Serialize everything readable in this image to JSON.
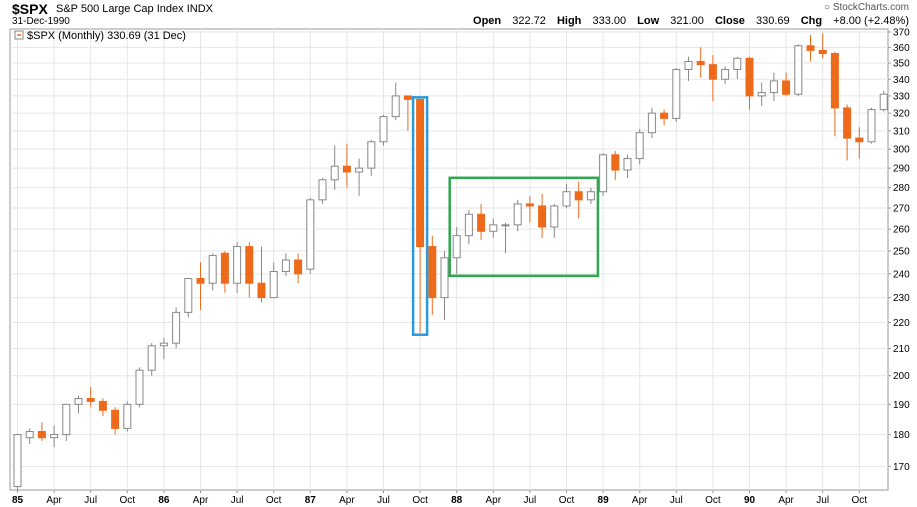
{
  "header": {
    "symbol": "$SPX",
    "name": "S&P 500 Large Cap Index",
    "exchange": "INDX",
    "date": "31-Dec-1990",
    "brand": "StockCharts.com",
    "open_label": "Open",
    "open": "322.72",
    "high_label": "High",
    "high": "333.00",
    "low_label": "Low",
    "low": "321.00",
    "close_label": "Close",
    "close": "330.69",
    "chg_label": "Chg",
    "chg": "+8.00 (+2.48%)"
  },
  "legend": {
    "text": "$SPX (Monthly) 330.69 (31 Dec)"
  },
  "colors": {
    "up_fill": "#ffffff",
    "up_stroke": "#888888",
    "down": "#ee6a1b",
    "grid": "#e6e6e6",
    "highlight_blue": "#2b9ad6",
    "highlight_green": "#2fa84f"
  },
  "chart_data": {
    "type": "candlestick",
    "scale": "log",
    "ylim": [
      163,
      372
    ],
    "y_ticks": [
      170,
      180,
      190,
      200,
      210,
      220,
      230,
      240,
      250,
      260,
      270,
      280,
      290,
      300,
      310,
      320,
      330,
      340,
      350,
      360,
      370
    ],
    "x_ticks": [
      {
        "label": "85",
        "index": 0,
        "year": true
      },
      {
        "label": "Apr",
        "index": 3
      },
      {
        "label": "Jul",
        "index": 6
      },
      {
        "label": "Oct",
        "index": 9
      },
      {
        "label": "86",
        "index": 12,
        "year": true
      },
      {
        "label": "Apr",
        "index": 15
      },
      {
        "label": "Jul",
        "index": 18
      },
      {
        "label": "Oct",
        "index": 21
      },
      {
        "label": "87",
        "index": 24,
        "year": true
      },
      {
        "label": "Apr",
        "index": 27
      },
      {
        "label": "Jul",
        "index": 30
      },
      {
        "label": "Oct",
        "index": 33
      },
      {
        "label": "88",
        "index": 36,
        "year": true
      },
      {
        "label": "Apr",
        "index": 39
      },
      {
        "label": "Jul",
        "index": 42
      },
      {
        "label": "Oct",
        "index": 45
      },
      {
        "label": "89",
        "index": 48,
        "year": true
      },
      {
        "label": "Apr",
        "index": 51
      },
      {
        "label": "Jul",
        "index": 54
      },
      {
        "label": "Oct",
        "index": 57
      },
      {
        "label": "90",
        "index": 60,
        "year": true
      },
      {
        "label": "Apr",
        "index": 63
      },
      {
        "label": "Jul",
        "index": 66
      },
      {
        "label": "Oct",
        "index": 69
      }
    ],
    "candles": [
      [
        164,
        180,
        163,
        180
      ],
      [
        179,
        182,
        177,
        181
      ],
      [
        181,
        184,
        178,
        179
      ],
      [
        179,
        183,
        176,
        180
      ],
      [
        180,
        190,
        178,
        190
      ],
      [
        190,
        193,
        187,
        192
      ],
      [
        192,
        196,
        189,
        191
      ],
      [
        191,
        192,
        186,
        188
      ],
      [
        188,
        189,
        180,
        182
      ],
      [
        182,
        191,
        181,
        190
      ],
      [
        190,
        203,
        189,
        202
      ],
      [
        202,
        212,
        200,
        211
      ],
      [
        211,
        214,
        206,
        212
      ],
      [
        212,
        226,
        210,
        224
      ],
      [
        224,
        238,
        222,
        238
      ],
      [
        238,
        245,
        225,
        236
      ],
      [
        236,
        249,
        233,
        248
      ],
      [
        249,
        250,
        232,
        236
      ],
      [
        236,
        254,
        232,
        252
      ],
      [
        252,
        254,
        230,
        236
      ],
      [
        236,
        252,
        228,
        230
      ],
      [
        230,
        245,
        230,
        241
      ],
      [
        241,
        249,
        239,
        246
      ],
      [
        246,
        249,
        236,
        240
      ],
      [
        242,
        275,
        240,
        274
      ],
      [
        274,
        285,
        272,
        284
      ],
      [
        284,
        302,
        279,
        291
      ],
      [
        291,
        303,
        280,
        288
      ],
      [
        288,
        295,
        276,
        290
      ],
      [
        290,
        305,
        286,
        304
      ],
      [
        304,
        319,
        302,
        318
      ],
      [
        318,
        338,
        316,
        330
      ],
      [
        330,
        330,
        310,
        328
      ],
      [
        328,
        328,
        216,
        252
      ],
      [
        252,
        257,
        223,
        230
      ],
      [
        230,
        250,
        221,
        247
      ],
      [
        247,
        261,
        240,
        257
      ],
      [
        257,
        269,
        253,
        267
      ],
      [
        267,
        272,
        255,
        259
      ],
      [
        259,
        265,
        256,
        262
      ],
      [
        262,
        263,
        249,
        262
      ],
      [
        262,
        274,
        259,
        272
      ],
      [
        272,
        276,
        263,
        271
      ],
      [
        271,
        277,
        256,
        261
      ],
      [
        261,
        272,
        256,
        271
      ],
      [
        271,
        282,
        270,
        278
      ],
      [
        278,
        283,
        265,
        274
      ],
      [
        274,
        280,
        272,
        278
      ],
      [
        278,
        298,
        276,
        297
      ],
      [
        297,
        299,
        284,
        289
      ],
      [
        289,
        297,
        285,
        295
      ],
      [
        295,
        311,
        292,
        309
      ],
      [
        309,
        323,
        306,
        320
      ],
      [
        320,
        322,
        313,
        317
      ],
      [
        317,
        347,
        315,
        346
      ],
      [
        346,
        354,
        339,
        351
      ],
      [
        351,
        360,
        341,
        349
      ],
      [
        349,
        355,
        327,
        340
      ],
      [
        340,
        348,
        337,
        346
      ],
      [
        346,
        354,
        340,
        353
      ],
      [
        353,
        354,
        322,
        330
      ],
      [
        330,
        338,
        324,
        332
      ],
      [
        332,
        344,
        327,
        339
      ],
      [
        339,
        344,
        330,
        331
      ],
      [
        331,
        362,
        330,
        361
      ],
      [
        361,
        368,
        351,
        358
      ],
      [
        358,
        369,
        353,
        356
      ],
      [
        356,
        357,
        307,
        323
      ],
      [
        323,
        325,
        294,
        306
      ],
      [
        306,
        312,
        295,
        304
      ],
      [
        304,
        323,
        303,
        322
      ],
      [
        322,
        333,
        321,
        331
      ]
    ],
    "highlights": [
      {
        "color": "blue",
        "from_index": 33,
        "to_index": 33,
        "y_top": 328,
        "y_bottom": 216
      },
      {
        "color": "green",
        "from_index": 36,
        "to_index": 47,
        "y_top": 284,
        "y_bottom": 240
      }
    ],
    "grid": true
  }
}
